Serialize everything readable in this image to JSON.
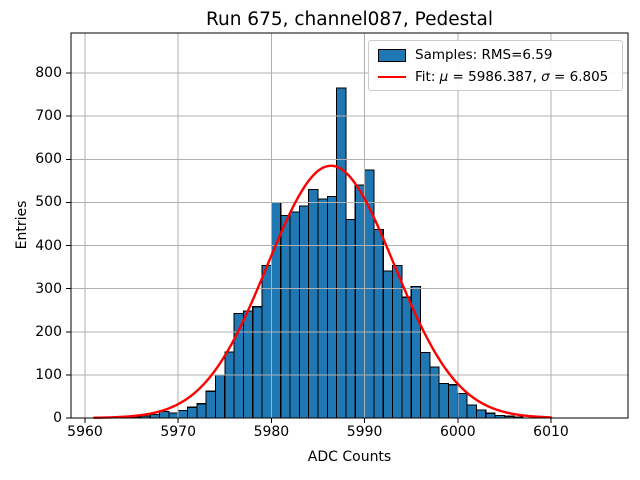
{
  "chart_data": {
    "type": "histogram",
    "title": "Run 675, channel087, Pedestal",
    "xlabel": "ADC Counts",
    "ylabel": "Entries",
    "grid": true,
    "legend_position": "upper right",
    "xtick_values": [
      5960,
      5970,
      5980,
      5990,
      6000,
      6010
    ],
    "xticklabels": [
      "5960",
      "5970",
      "5980",
      "5990",
      "6000",
      "6010"
    ],
    "ytick_values": [
      0,
      100,
      200,
      300,
      400,
      500,
      600,
      700,
      800
    ],
    "yticklabels": [
      "0",
      "100",
      "200",
      "300",
      "400",
      "500",
      "600",
      "700",
      "800"
    ],
    "ylim": [
      0,
      893
    ],
    "bins": {
      "start": 5964,
      "width": 1
    },
    "counts": [
      2,
      3,
      5,
      8,
      15,
      12,
      17,
      25,
      33,
      62,
      100,
      153,
      242,
      248,
      258,
      354,
      500,
      470,
      478,
      492,
      530,
      508,
      514,
      765,
      460,
      540,
      575,
      437,
      341,
      354,
      280,
      305,
      152,
      118,
      80,
      77,
      57,
      30,
      19,
      11,
      6,
      4,
      2
    ],
    "fit_curve": {
      "type": "gaussian",
      "mu": 5986.387,
      "sigma": 6.805,
      "amplitude": 585,
      "x_start": 5961,
      "x_end": 6010
    },
    "legend": {
      "samples_label": "Samples: RMS=6.59",
      "fit_prefix": "Fit: ",
      "mu_symbol": "μ",
      "mu_eq": " = 5986.387, ",
      "sigma_symbol": "σ",
      "sigma_eq": " = 6.805"
    },
    "colors": {
      "bar_fill": "#1f77b4",
      "bar_edge": "#000000",
      "fit_line": "#ff0000",
      "grid": "#b0b0b0",
      "spine": "#000000"
    }
  }
}
